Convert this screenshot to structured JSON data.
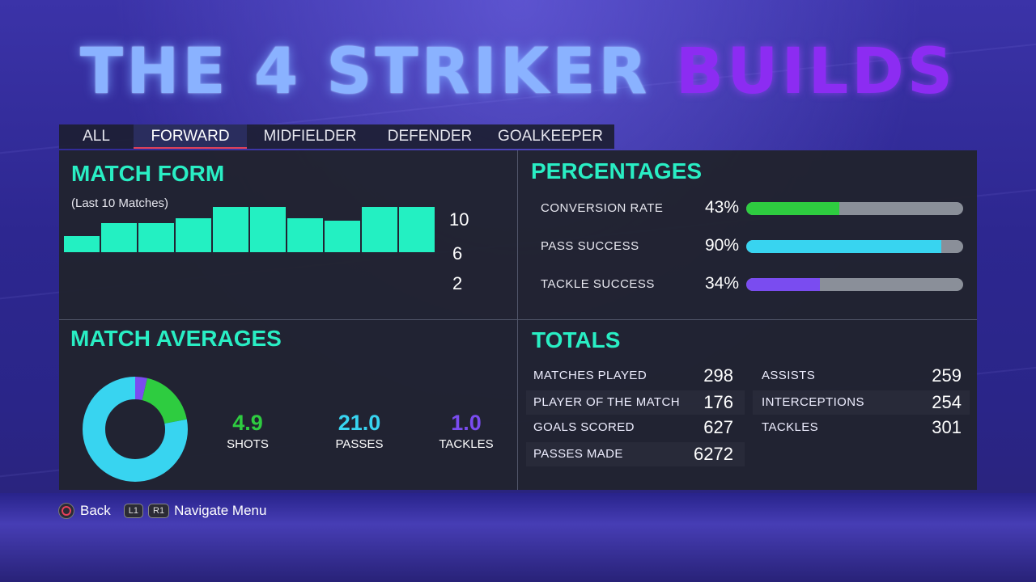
{
  "title": {
    "part1": "THE 4 STRIKER",
    "part2": "BUILDS"
  },
  "tabs": [
    {
      "label": "ALL"
    },
    {
      "label": "FORWARD",
      "active": true
    },
    {
      "label": "MIDFIELDER"
    },
    {
      "label": "DEFENDER"
    },
    {
      "label": "GOALKEEPER"
    }
  ],
  "match_form": {
    "title": "MATCH FORM",
    "subtitle": "(Last 10 Matches)",
    "axis_labels": [
      "10",
      "6",
      "2"
    ],
    "chart_data": {
      "type": "bar",
      "values": [
        3.5,
        6.5,
        6.5,
        7.5,
        10,
        10,
        7.5,
        7,
        10,
        10
      ],
      "ylim": [
        0,
        10
      ]
    }
  },
  "percentages": {
    "title": "PERCENTAGES",
    "items": [
      {
        "label": "CONVERSION RATE",
        "value": "43%",
        "fraction": 0.43,
        "color": "#2ecc40"
      },
      {
        "label": "PASS SUCCESS",
        "value": "90%",
        "fraction": 0.9,
        "color": "#38d4f0"
      },
      {
        "label": "TACKLE SUCCESS",
        "value": "34%",
        "fraction": 0.34,
        "color": "#7a4cf0"
      }
    ]
  },
  "match_averages": {
    "title": "MATCH AVERAGES",
    "items": [
      {
        "value": "4.9",
        "label": "SHOTS",
        "number": 4.9,
        "color": "#2ecc40"
      },
      {
        "value": "21.0",
        "label": "PASSES",
        "number": 21.0,
        "color": "#38d4f0"
      },
      {
        "value": "1.0",
        "label": "TACKLES",
        "number": 1.0,
        "color": "#7a4cf0"
      }
    ]
  },
  "totals": {
    "title": "TOTALS",
    "left": [
      {
        "label": "MATCHES PLAYED",
        "value": "298"
      },
      {
        "label": "PLAYER OF THE MATCH",
        "value": "176"
      },
      {
        "label": "GOALS SCORED",
        "value": "627"
      },
      {
        "label": "PASSES MADE",
        "value": "6272"
      }
    ],
    "right": [
      {
        "label": "ASSISTS",
        "value": "259"
      },
      {
        "label": "INTERCEPTIONS",
        "value": "254"
      },
      {
        "label": "TACKLES",
        "value": "301"
      }
    ]
  },
  "footer": {
    "back_label": "Back",
    "l1": "L1",
    "r1": "R1",
    "navigate_label": "Navigate Menu"
  },
  "colors": {
    "accent": "#29eec4",
    "tab_underline": "#e0425a",
    "title_blue": "#8ab2ff",
    "title_purple": "#8c2cf2"
  }
}
